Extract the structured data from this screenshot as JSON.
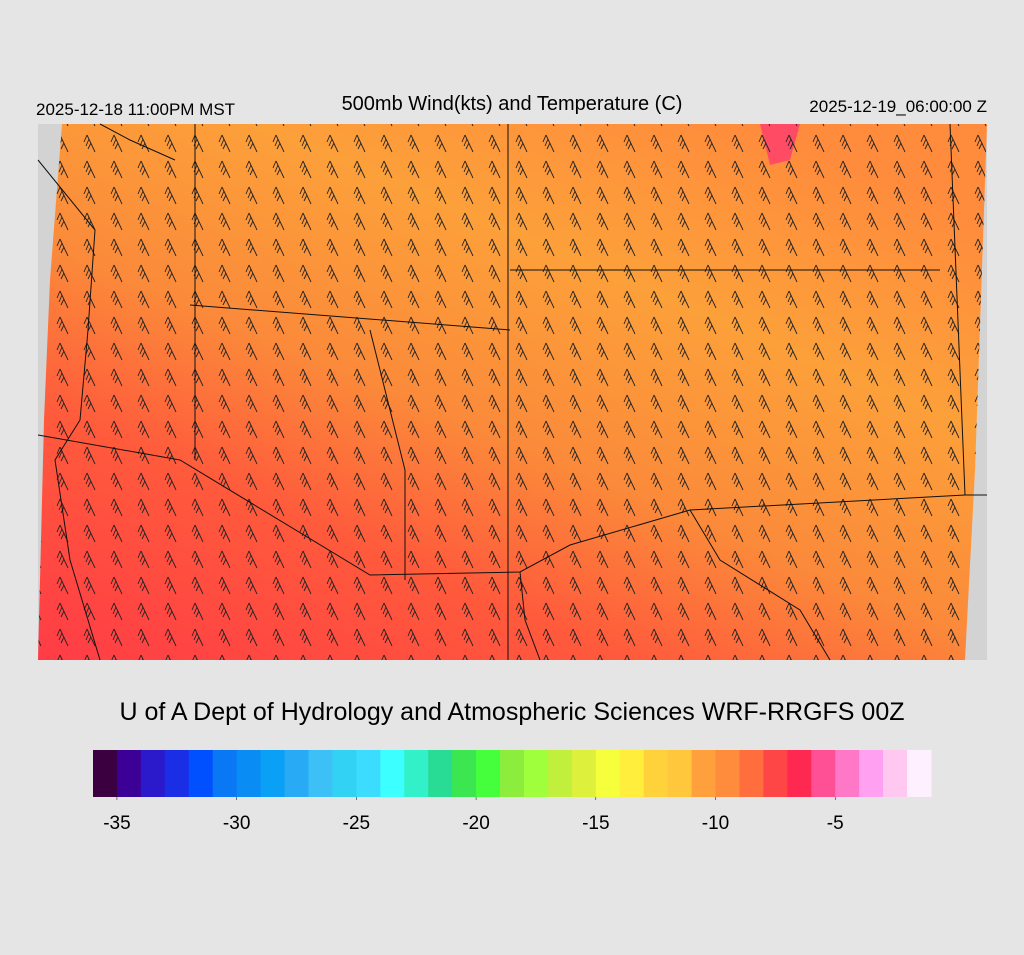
{
  "header": {
    "left": "2025-12-18 11:00PM MST",
    "title": "500mb Wind(kts) and Temperature (C)",
    "right": "2025-12-19_06:00:00 Z"
  },
  "credit": "U of A Dept of Hydrology and Atmospheric Sciences WRF-RRGFS 00Z",
  "colorbar": {
    "colors": [
      "#3a0040",
      "#3c0096",
      "#2b1acc",
      "#1a2ee6",
      "#0050ff",
      "#0a78f5",
      "#0a8cf5",
      "#0aa0f5",
      "#28aaf5",
      "#3cc0f5",
      "#32d2f5",
      "#3cdcff",
      "#3cffff",
      "#32f0c8",
      "#28dc96",
      "#3ce650",
      "#46ff3c",
      "#8ced3c",
      "#a0ff3c",
      "#c0f03c",
      "#dcf03c",
      "#f5ff3c",
      "#ffee3c",
      "#ffd23c",
      "#ffc83c",
      "#ffa03c",
      "#ff8c3c",
      "#ff6e3c",
      "#ff4646",
      "#ff2850",
      "#ff5096",
      "#ff78c8",
      "#ffa0f0",
      "#ffc8f0",
      "#fff0ff"
    ],
    "lim": [
      -36,
      -1
    ],
    "ticks": [
      -35,
      -30,
      -25,
      -20,
      -15,
      -10,
      -5
    ]
  }
}
